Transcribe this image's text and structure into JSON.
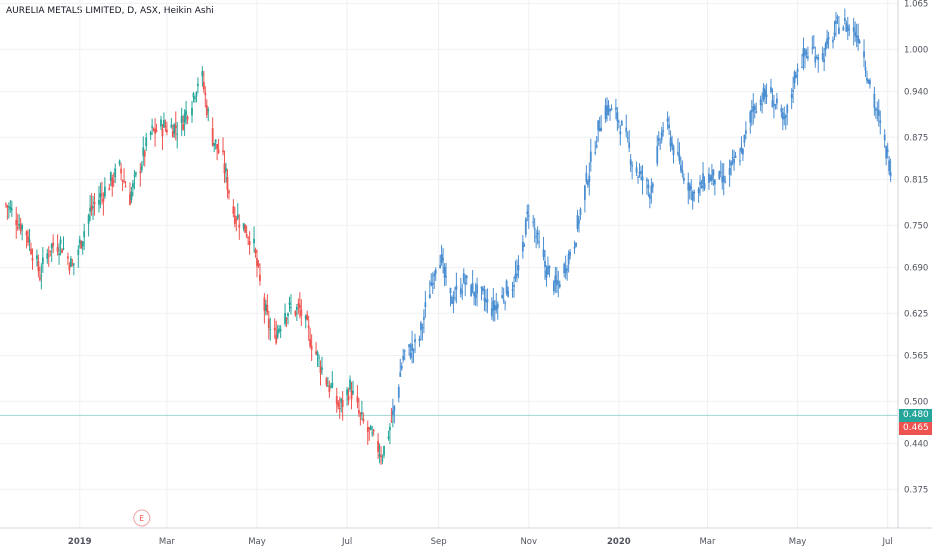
{
  "title": "AURELIA METALS LIMITED, D, ASX, Heikin Ashi",
  "colors": {
    "up": "#26a69a",
    "down": "#ef5350",
    "projection": "#4a8ed1",
    "grid": "#eef0f3",
    "axis_text": "#50535e",
    "tag_up": "#26a69a",
    "tag_down": "#ef5350"
  },
  "price_tags": [
    {
      "label": "0.480",
      "value": 0.48,
      "color": "#26a69a"
    },
    {
      "label": "0.465",
      "value": 0.465,
      "color": "#ef5350"
    }
  ],
  "event_marker": {
    "label": "E",
    "x": "2019-02-12"
  },
  "chart_data": {
    "type": "candlestick",
    "title": "AURELIA METALS LIMITED, D, ASX, Heikin Ashi",
    "x_tick_labels": [
      "2019",
      "Mar",
      "May",
      "Jul",
      "Sep",
      "Nov",
      "2020",
      "Mar",
      "May",
      "Jul"
    ],
    "x_tick_dates": [
      "2019-01-01",
      "2019-03-01",
      "2019-05-01",
      "2019-07-01",
      "2019-09-01",
      "2019-11-01",
      "2020-01-01",
      "2020-03-01",
      "2020-05-01",
      "2020-07-01"
    ],
    "y_tick_labels": [
      "0.375",
      "0.440",
      "0.500",
      "0.565",
      "0.625",
      "0.690",
      "0.750",
      "0.815",
      "0.875",
      "0.940",
      "1.000",
      "1.065"
    ],
    "y_ticks": [
      0.375,
      0.44,
      0.5,
      0.565,
      0.625,
      0.69,
      0.75,
      0.815,
      0.875,
      0.94,
      1.0,
      1.065
    ],
    "ylim": [
      0.32,
      1.07
    ],
    "xlim": [
      "2018-11-08",
      "2020-07-08"
    ],
    "grid": true,
    "series": [
      {
        "style": "heikin-ashi",
        "points": [
          [
            "2018-11-12",
            0.78
          ],
          [
            "2018-11-26",
            0.74
          ],
          [
            "2018-12-05",
            0.68
          ],
          [
            "2018-12-12",
            0.72
          ],
          [
            "2018-12-19",
            0.725
          ],
          [
            "2018-12-27",
            0.69
          ],
          [
            "2019-01-08",
            0.77
          ],
          [
            "2019-01-18",
            0.8
          ],
          [
            "2019-01-28",
            0.83
          ],
          [
            "2019-02-04",
            0.79
          ],
          [
            "2019-02-18",
            0.88
          ],
          [
            "2019-02-26",
            0.89
          ],
          [
            "2019-03-10",
            0.89
          ],
          [
            "2019-03-18",
            0.93
          ],
          [
            "2019-03-24",
            0.97
          ],
          [
            "2019-03-31",
            0.88
          ],
          [
            "2019-04-08",
            0.84
          ],
          [
            "2019-04-15",
            0.77
          ],
          [
            "2019-04-28",
            0.73
          ],
          [
            "2019-05-05",
            0.64
          ],
          [
            "2019-05-12",
            0.585
          ],
          [
            "2019-05-20",
            0.63
          ],
          [
            "2019-05-30",
            0.63
          ],
          [
            "2019-06-06",
            0.59
          ],
          [
            "2019-06-17",
            0.53
          ],
          [
            "2019-06-26",
            0.49
          ],
          [
            "2019-07-03",
            0.52
          ],
          [
            "2019-07-10",
            0.475
          ],
          [
            "2019-07-17",
            0.45
          ],
          [
            "2019-07-25",
            0.425
          ],
          [
            "2019-08-01",
            0.48
          ]
        ]
      },
      {
        "style": "projection",
        "points": [
          [
            "2019-08-01",
            0.48
          ],
          [
            "2019-08-08",
            0.565
          ],
          [
            "2019-08-18",
            0.58
          ],
          [
            "2019-08-26",
            0.66
          ],
          [
            "2019-09-01",
            0.72
          ],
          [
            "2019-09-08",
            0.64
          ],
          [
            "2019-09-18",
            0.67
          ],
          [
            "2019-09-28",
            0.65
          ],
          [
            "2019-10-08",
            0.63
          ],
          [
            "2019-10-18",
            0.66
          ],
          [
            "2019-10-25",
            0.68
          ],
          [
            "2019-11-01",
            0.775
          ],
          [
            "2019-11-10",
            0.7
          ],
          [
            "2019-11-20",
            0.66
          ],
          [
            "2019-12-02",
            0.73
          ],
          [
            "2019-12-14",
            0.85
          ],
          [
            "2019-12-22",
            0.92
          ],
          [
            "2020-01-01",
            0.9
          ],
          [
            "2020-01-12",
            0.83
          ],
          [
            "2020-01-22",
            0.8
          ],
          [
            "2020-02-01",
            0.9
          ],
          [
            "2020-02-10",
            0.84
          ],
          [
            "2020-02-22",
            0.79
          ],
          [
            "2020-03-01",
            0.82
          ],
          [
            "2020-03-12",
            0.81
          ],
          [
            "2020-03-25",
            0.86
          ],
          [
            "2020-04-01",
            0.92
          ],
          [
            "2020-04-12",
            0.94
          ],
          [
            "2020-04-22",
            0.89
          ],
          [
            "2020-05-01",
            0.98
          ],
          [
            "2020-05-10",
            1.0
          ],
          [
            "2020-05-18",
            0.99
          ],
          [
            "2020-05-30",
            1.04
          ],
          [
            "2020-06-12",
            1.02
          ],
          [
            "2020-06-20",
            0.94
          ],
          [
            "2020-06-28",
            0.87
          ],
          [
            "2020-07-05",
            0.82
          ]
        ]
      }
    ]
  }
}
